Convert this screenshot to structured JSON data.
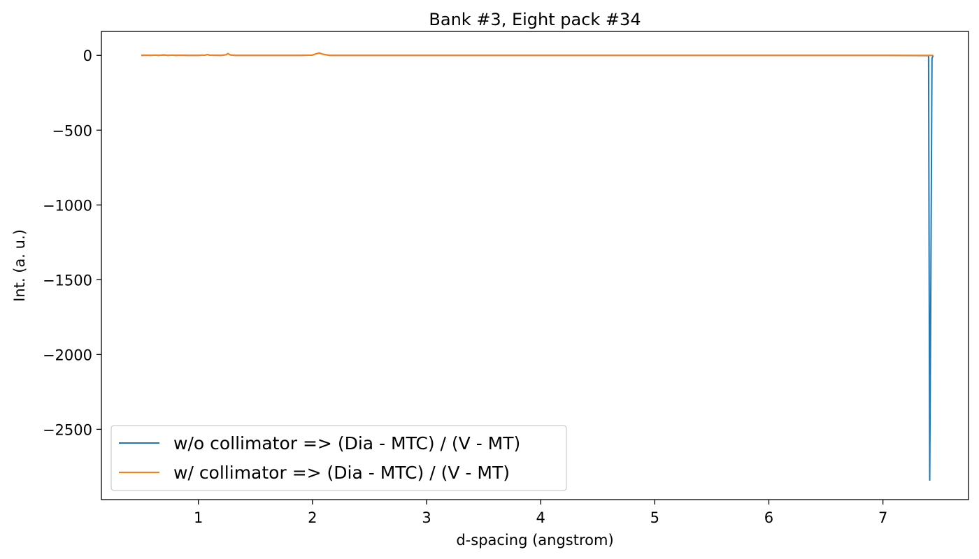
{
  "chart_data": {
    "type": "line",
    "title": "Bank #3, Eight pack #34",
    "xlabel": "d-spacing (angstrom)",
    "ylabel": "Int. (a. u.)",
    "xlim": [
      0.15,
      7.75
    ],
    "ylim": [
      -2970,
      160
    ],
    "xticks": [
      1,
      2,
      3,
      4,
      5,
      6,
      7
    ],
    "yticks": [
      0,
      -500,
      -1000,
      -1500,
      -2000,
      -2500
    ],
    "xtick_labels": [
      "1",
      "2",
      "3",
      "4",
      "5",
      "6",
      "7"
    ],
    "ytick_labels": [
      "0",
      "−500",
      "−1000",
      "−1500",
      "−2000",
      "−2500"
    ],
    "grid": false,
    "legend_position": "lower-left",
    "series": [
      {
        "name": "w/o collimator => (Dia - MTC) / (V - MT)",
        "color": "#1f77b4",
        "x": [
          0.5,
          0.55,
          0.58,
          0.62,
          0.65,
          0.7,
          0.73,
          0.77,
          0.8,
          0.85,
          0.9,
          1.0,
          1.06,
          1.08,
          1.1,
          1.2,
          1.24,
          1.26,
          1.28,
          1.32,
          1.6,
          1.9,
          2.0,
          2.03,
          2.06,
          2.09,
          2.15,
          3.0,
          4.0,
          5.0,
          6.0,
          7.0,
          7.4,
          7.41,
          7.42,
          7.43,
          7.44
        ],
        "y": [
          0,
          1,
          0,
          2,
          0,
          3,
          0,
          2,
          0,
          1,
          0,
          0,
          2,
          6,
          1,
          0,
          4,
          12,
          3,
          0,
          0,
          0,
          2,
          10,
          16,
          8,
          0,
          0,
          0,
          0,
          0,
          0,
          -2,
          -2840,
          -1500,
          -20,
          0
        ]
      },
      {
        "name": "w/ collimator => (Dia - MTC) / (V - MT)",
        "color": "#ff7f0e",
        "x": [
          0.5,
          0.55,
          0.58,
          0.62,
          0.65,
          0.7,
          0.73,
          0.77,
          0.8,
          0.85,
          0.9,
          1.0,
          1.06,
          1.08,
          1.1,
          1.2,
          1.24,
          1.26,
          1.28,
          1.32,
          1.6,
          1.9,
          2.0,
          2.03,
          2.06,
          2.09,
          2.15,
          3.0,
          4.0,
          5.0,
          6.0,
          7.0,
          7.4,
          7.44
        ],
        "y": [
          0,
          1,
          0,
          2,
          0,
          3,
          0,
          2,
          0,
          1,
          0,
          0,
          2,
          6,
          1,
          0,
          4,
          12,
          3,
          0,
          0,
          0,
          2,
          10,
          16,
          8,
          0,
          0,
          0,
          0,
          0,
          0,
          0,
          0
        ]
      }
    ]
  }
}
